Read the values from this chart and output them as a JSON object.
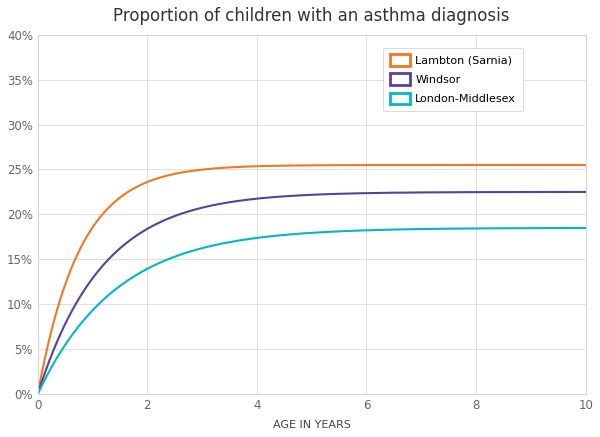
{
  "title": "Proportion of children with an asthma diagnosis",
  "xlabel": "AGE IN YEARS",
  "xlim": [
    0,
    10
  ],
  "ylim": [
    0,
    0.4
  ],
  "yticks": [
    0.0,
    0.05,
    0.1,
    0.15,
    0.2,
    0.25,
    0.3,
    0.35,
    0.4
  ],
  "xticks": [
    0,
    2,
    4,
    6,
    8,
    10
  ],
  "series": [
    {
      "label": "Lambton (Sarnia)",
      "color": "#f07820",
      "border_color": "#f07820",
      "growth_rate": 1.3,
      "asymptote": 0.255
    },
    {
      "label": "Windsor",
      "color": "#5b3fa0",
      "border_color": "#5b3fa0",
      "growth_rate": 0.85,
      "asymptote": 0.225
    },
    {
      "label": "London-Middlesex",
      "color": "#00b8c8",
      "border_color": "#00b8c8",
      "growth_rate": 0.7,
      "asymptote": 0.185
    }
  ],
  "background_color": "#ffffff",
  "plot_background": "#ffffff",
  "grid_color": "#e0e0e0",
  "title_fontsize": 12,
  "label_fontsize": 8,
  "tick_fontsize": 8.5
}
